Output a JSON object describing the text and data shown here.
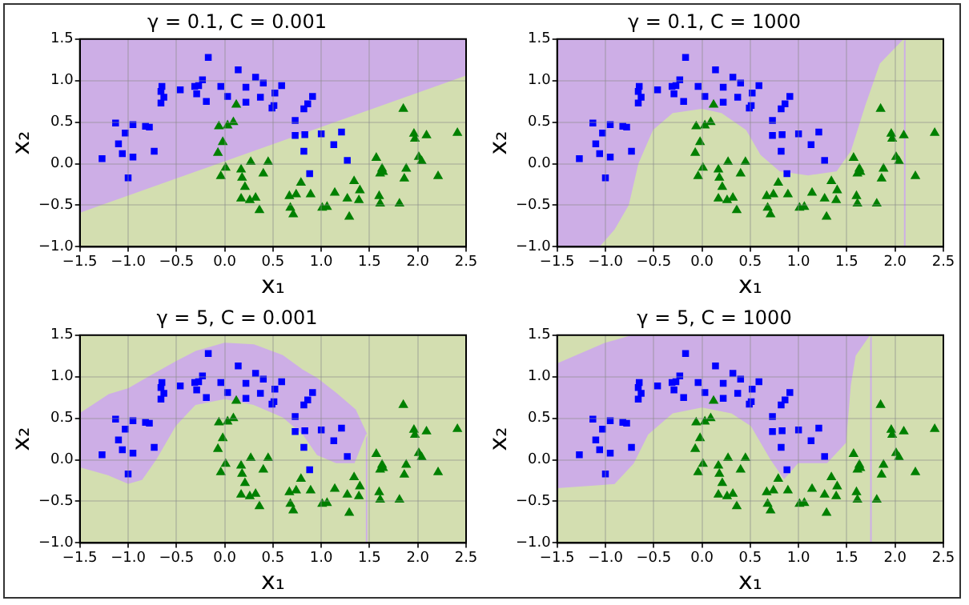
{
  "chart_data": [
    {
      "type": "scatter",
      "title": "γ = 0.1, C = 0.001",
      "xlabel": "x₁",
      "ylabel": "x₂",
      "xlim": [
        -1.5,
        2.5
      ],
      "ylim": [
        -1.0,
        1.5
      ],
      "xticks": [
        {
          "value": -1.5,
          "label": "−1.5"
        },
        {
          "value": -1.0,
          "label": "−1.0"
        },
        {
          "value": -0.5,
          "label": "−0.5"
        },
        {
          "value": 0,
          "label": "0.0"
        },
        {
          "value": 0.5,
          "label": "0.5"
        },
        {
          "value": 1.0,
          "label": "1.0"
        },
        {
          "value": 1.5,
          "label": "1.5"
        },
        {
          "value": 2.0,
          "label": "2.0"
        },
        {
          "value": 2.5,
          "label": "2.5"
        }
      ],
      "yticks": [
        {
          "value": -1.0,
          "label": "−1.0"
        },
        {
          "value": -0.5,
          "label": "−0.5"
        },
        {
          "value": 0,
          "label": "0.0"
        },
        {
          "value": 0.5,
          "label": "0.5"
        },
        {
          "value": 1.0,
          "label": "1.0"
        },
        {
          "value": 1.5,
          "label": "1.5"
        }
      ],
      "grid": true,
      "legend": false,
      "series": [
        {
          "type": "area",
          "color": "#d3deb0",
          "x": [
            -1.5,
            -1.5,
            2.5,
            2.5
          ],
          "values": [
            -1.0,
            -0.6,
            1.05,
            -1.0
          ]
        },
        {
          "color": "#0000ff",
          "marker": "square",
          "x": [
            -1.27,
            -1.13,
            -1.03,
            -1.1,
            -1.06,
            -0.95,
            -0.95,
            -1.0,
            -0.82,
            -0.78,
            -0.73,
            -0.65,
            -0.66,
            -0.63,
            -0.66,
            -0.46,
            -0.31,
            -0.27,
            -0.29,
            -0.23,
            -0.19,
            -0.17,
            -0.04,
            0.03,
            0.14,
            0.22,
            0.22,
            0.32,
            0.37,
            0.4,
            0.49,
            0.51,
            0.52,
            0.59,
            0.73,
            0.73,
            0.82,
            0.86,
            0.91,
            0.83,
            0.82,
            0.88,
            1.0,
            1.13,
            1.21,
            1.27
          ],
          "values": [
            0.06,
            0.49,
            0.37,
            0.24,
            0.12,
            0.47,
            0.08,
            -0.17,
            0.45,
            0.44,
            0.15,
            0.93,
            0.87,
            0.8,
            0.73,
            0.89,
            0.93,
            0.94,
            0.84,
            1.01,
            0.75,
            1.28,
            0.93,
            0.81,
            1.13,
            0.92,
            0.74,
            1.04,
            0.8,
            0.97,
            0.67,
            0.7,
            0.85,
            0.94,
            0.52,
            0.34,
            0.66,
            0.72,
            0.81,
            0.35,
            0.15,
            -0.12,
            0.36,
            0.23,
            0.38,
            0.04
          ]
        },
        {
          "color": "#008000",
          "marker": "triangle",
          "x": [
            0.12,
            -0.06,
            0.03,
            0.09,
            -0.02,
            -0.07,
            0.01,
            -0.04,
            0.17,
            0.18,
            0.21,
            0.27,
            0.26,
            0.32,
            0.17,
            0.36,
            0.4,
            0.45,
            0.67,
            0.68,
            0.71,
            0.74,
            0.79,
            0.89,
            1.01,
            1.06,
            1.14,
            1.27,
            1.29,
            1.34,
            1.39,
            1.4,
            1.57,
            1.61,
            1.63,
            1.64,
            1.6,
            1.61,
            1.81,
            1.86,
            1.88,
            1.85,
            1.96,
            1.97,
            2.09,
            2.01,
            2.04,
            2.21,
            2.41
          ],
          "values": [
            0.71,
            0.45,
            0.46,
            0.5,
            0.26,
            0.13,
            -0.05,
            -0.15,
            -0.07,
            -0.17,
            -0.28,
            0.02,
            -0.44,
            -0.41,
            -0.42,
            -0.56,
            -0.12,
            0.02,
            -0.39,
            -0.53,
            -0.61,
            -0.37,
            -0.23,
            -0.37,
            -0.53,
            -0.52,
            -0.35,
            -0.42,
            -0.64,
            -0.21,
            -0.44,
            -0.32,
            0.07,
            -0.12,
            -0.06,
            -0.1,
            -0.39,
            -0.48,
            -0.48,
            -0.18,
            -0.06,
            0.66,
            0.36,
            0.3,
            0.34,
            0.08,
            0.03,
            -0.15,
            0.37
          ]
        }
      ]
    },
    {
      "type": "scatter",
      "title": "γ = 0.1, C = 1000",
      "xlabel": "x₁",
      "ylabel": "x₂",
      "xlim": [
        -1.5,
        2.5
      ],
      "ylim": [
        -1.0,
        1.5
      ],
      "xticks": [
        {
          "value": -1.5,
          "label": "−1.5"
        },
        {
          "value": -1.0,
          "label": "−1.0"
        },
        {
          "value": -0.5,
          "label": "−0.5"
        },
        {
          "value": 0,
          "label": "0.0"
        },
        {
          "value": 0.5,
          "label": "0.5"
        },
        {
          "value": 1.0,
          "label": "1.0"
        },
        {
          "value": 1.5,
          "label": "1.5"
        },
        {
          "value": 2.0,
          "label": "2.0"
        },
        {
          "value": 2.5,
          "label": "2.5"
        }
      ],
      "yticks": [
        {
          "value": -1.0,
          "label": "−1.0"
        },
        {
          "value": -0.5,
          "label": "−0.5"
        },
        {
          "value": 0,
          "label": "0.0"
        },
        {
          "value": 0.5,
          "label": "0.5"
        },
        {
          "value": 1.0,
          "label": "1.0"
        },
        {
          "value": 1.5,
          "label": "1.5"
        }
      ],
      "grid": true,
      "legend": false,
      "series": [
        {
          "type": "area",
          "color": "#cdaee6",
          "x": [
            -1.5,
            -1.5,
            2.1,
            2.1
          ],
          "values": [
            -1.0,
            1.5,
            1.5,
            -1.0
          ]
        },
        {
          "type": "area",
          "color": "#d3deb0",
          "x": [
            -1.05,
            -0.9,
            -0.75,
            -0.65,
            -0.5,
            -0.3,
            0,
            0.2,
            0.45,
            0.6,
            0.8,
            1.1,
            1.4,
            1.55,
            1.7,
            1.85,
            2.1,
            2.5,
            2.5
          ],
          "values": [
            -1.0,
            -0.8,
            -0.5,
            0,
            0.4,
            0.6,
            0.65,
            0.6,
            0.4,
            0.1,
            -0.1,
            -0.15,
            -0.1,
            0.15,
            0.7,
            1.2,
            1.5,
            1.5,
            -1.0
          ]
        },
        {
          "color": "#0000ff",
          "marker": "square",
          "x": [
            -1.27,
            -1.13,
            -1.03,
            -1.1,
            -1.06,
            -0.95,
            -0.95,
            -1.0,
            -0.82,
            -0.78,
            -0.73,
            -0.65,
            -0.66,
            -0.63,
            -0.66,
            -0.46,
            -0.31,
            -0.27,
            -0.29,
            -0.23,
            -0.19,
            -0.17,
            -0.04,
            0.03,
            0.14,
            0.22,
            0.22,
            0.32,
            0.37,
            0.4,
            0.49,
            0.51,
            0.52,
            0.59,
            0.73,
            0.73,
            0.82,
            0.86,
            0.91,
            0.83,
            0.82,
            0.88,
            1.0,
            1.13,
            1.21,
            1.27
          ],
          "values": [
            0.06,
            0.49,
            0.37,
            0.24,
            0.12,
            0.47,
            0.08,
            -0.17,
            0.45,
            0.44,
            0.15,
            0.93,
            0.87,
            0.8,
            0.73,
            0.89,
            0.93,
            0.94,
            0.84,
            1.01,
            0.75,
            1.28,
            0.93,
            0.81,
            1.13,
            0.92,
            0.74,
            1.04,
            0.8,
            0.97,
            0.67,
            0.7,
            0.85,
            0.94,
            0.52,
            0.34,
            0.66,
            0.72,
            0.81,
            0.35,
            0.15,
            -0.12,
            0.36,
            0.23,
            0.38,
            0.04
          ]
        },
        {
          "color": "#008000",
          "marker": "triangle",
          "x": [
            0.12,
            -0.06,
            0.03,
            0.09,
            -0.02,
            -0.07,
            0.01,
            -0.04,
            0.17,
            0.18,
            0.21,
            0.27,
            0.26,
            0.32,
            0.17,
            0.36,
            0.4,
            0.45,
            0.67,
            0.68,
            0.71,
            0.74,
            0.79,
            0.89,
            1.01,
            1.06,
            1.14,
            1.27,
            1.29,
            1.34,
            1.39,
            1.4,
            1.57,
            1.61,
            1.63,
            1.64,
            1.6,
            1.61,
            1.81,
            1.86,
            1.88,
            1.85,
            1.96,
            1.97,
            2.09,
            2.01,
            2.04,
            2.21,
            2.41
          ],
          "values": [
            0.71,
            0.45,
            0.46,
            0.5,
            0.26,
            0.13,
            -0.05,
            -0.15,
            -0.07,
            -0.17,
            -0.28,
            0.02,
            -0.44,
            -0.41,
            -0.42,
            -0.56,
            -0.12,
            0.02,
            -0.39,
            -0.53,
            -0.61,
            -0.37,
            -0.23,
            -0.37,
            -0.53,
            -0.52,
            -0.35,
            -0.42,
            -0.64,
            -0.21,
            -0.44,
            -0.32,
            0.07,
            -0.12,
            -0.06,
            -0.1,
            -0.39,
            -0.48,
            -0.48,
            -0.18,
            -0.06,
            0.66,
            0.36,
            0.3,
            0.34,
            0.08,
            0.03,
            -0.15,
            0.37
          ]
        }
      ]
    },
    {
      "type": "scatter",
      "title": "γ = 5, C = 0.001",
      "xlabel": "x₁",
      "ylabel": "x₂",
      "xlim": [
        -1.5,
        2.5
      ],
      "ylim": [
        -1.0,
        1.5
      ],
      "xticks": [
        {
          "value": -1.5,
          "label": "−1.5"
        },
        {
          "value": -1.0,
          "label": "−1.0"
        },
        {
          "value": -0.5,
          "label": "−0.5"
        },
        {
          "value": 0,
          "label": "0.0"
        },
        {
          "value": 0.5,
          "label": "0.5"
        },
        {
          "value": 1.0,
          "label": "1.0"
        },
        {
          "value": 1.5,
          "label": "1.5"
        },
        {
          "value": 2.0,
          "label": "2.0"
        },
        {
          "value": 2.5,
          "label": "2.5"
        }
      ],
      "yticks": [
        {
          "value": -1.0,
          "label": "−1.0"
        },
        {
          "value": -0.5,
          "label": "−0.5"
        },
        {
          "value": 0,
          "label": "0.0"
        },
        {
          "value": 0.5,
          "label": "0.5"
        },
        {
          "value": 1.0,
          "label": "1.0"
        },
        {
          "value": 1.5,
          "label": "1.5"
        }
      ],
      "grid": true,
      "legend": false,
      "series": [
        {
          "type": "area",
          "color": "#cdaee6",
          "x": [
            -1.5,
            -1.5,
            -1.2,
            -1.0,
            -0.85,
            -0.7,
            -0.5,
            -0.3,
            0,
            0.3,
            0.6,
            0.8,
            0.95,
            1.15,
            1.35,
            1.47,
            1.47
          ],
          "values": [
            -1.0,
            0.55,
            0.78,
            0.85,
            0.95,
            1.05,
            1.18,
            1.3,
            1.4,
            1.38,
            1.25,
            1.08,
            0.98,
            0.8,
            0.6,
            0.3,
            -1.0
          ]
        },
        {
          "type": "area",
          "color": "#d3deb0",
          "x": [
            -1.5,
            -1.5,
            -1.2,
            -1.0,
            -0.85,
            -0.7,
            -0.5,
            -0.3,
            0,
            0.3,
            0.6,
            0.8,
            0.95,
            1.15,
            1.35,
            1.47,
            2.5,
            2.5
          ],
          "values": [
            -1.0,
            -0.1,
            -0.2,
            -0.3,
            -0.25,
            0.0,
            0.4,
            0.65,
            0.72,
            0.65,
            0.5,
            0.3,
            0.05,
            -0.05,
            -0.05,
            0.3,
            0.3,
            -1.0
          ]
        },
        {
          "color": "#0000ff",
          "marker": "square",
          "x": [
            -1.27,
            -1.13,
            -1.03,
            -1.1,
            -1.06,
            -0.95,
            -0.95,
            -1.0,
            -0.82,
            -0.78,
            -0.73,
            -0.65,
            -0.66,
            -0.63,
            -0.66,
            -0.46,
            -0.31,
            -0.27,
            -0.29,
            -0.23,
            -0.19,
            -0.17,
            -0.04,
            0.03,
            0.14,
            0.22,
            0.22,
            0.32,
            0.37,
            0.4,
            0.49,
            0.51,
            0.52,
            0.59,
            0.73,
            0.73,
            0.82,
            0.86,
            0.91,
            0.83,
            0.82,
            0.88,
            1.0,
            1.13,
            1.21,
            1.27
          ],
          "values": [
            0.06,
            0.49,
            0.37,
            0.24,
            0.12,
            0.47,
            0.08,
            -0.17,
            0.45,
            0.44,
            0.15,
            0.93,
            0.87,
            0.8,
            0.73,
            0.89,
            0.93,
            0.94,
            0.84,
            1.01,
            0.75,
            1.28,
            0.93,
            0.81,
            1.13,
            0.92,
            0.74,
            1.04,
            0.8,
            0.97,
            0.67,
            0.7,
            0.85,
            0.94,
            0.52,
            0.34,
            0.66,
            0.72,
            0.81,
            0.35,
            0.15,
            -0.12,
            0.36,
            0.23,
            0.38,
            0.04
          ]
        },
        {
          "color": "#008000",
          "marker": "triangle",
          "x": [
            0.12,
            -0.06,
            0.03,
            0.09,
            -0.02,
            -0.07,
            0.01,
            -0.04,
            0.17,
            0.18,
            0.21,
            0.27,
            0.26,
            0.32,
            0.17,
            0.36,
            0.4,
            0.45,
            0.67,
            0.68,
            0.71,
            0.74,
            0.79,
            0.89,
            1.01,
            1.06,
            1.14,
            1.27,
            1.29,
            1.34,
            1.39,
            1.4,
            1.57,
            1.61,
            1.63,
            1.64,
            1.6,
            1.61,
            1.81,
            1.86,
            1.88,
            1.85,
            1.96,
            1.97,
            2.09,
            2.01,
            2.04,
            2.21,
            2.41
          ],
          "values": [
            0.71,
            0.45,
            0.46,
            0.5,
            0.26,
            0.13,
            -0.05,
            -0.15,
            -0.07,
            -0.17,
            -0.28,
            0.02,
            -0.44,
            -0.41,
            -0.42,
            -0.56,
            -0.12,
            0.02,
            -0.39,
            -0.53,
            -0.61,
            -0.37,
            -0.23,
            -0.37,
            -0.53,
            -0.52,
            -0.35,
            -0.42,
            -0.64,
            -0.21,
            -0.44,
            -0.32,
            0.07,
            -0.12,
            -0.06,
            -0.1,
            -0.39,
            -0.48,
            -0.48,
            -0.18,
            -0.06,
            0.66,
            0.36,
            0.3,
            0.34,
            0.08,
            0.03,
            -0.15,
            0.37
          ]
        }
      ]
    },
    {
      "type": "scatter",
      "title": "γ = 5, C = 1000",
      "xlabel": "x₁",
      "ylabel": "x₂",
      "xlim": [
        -1.5,
        2.5
      ],
      "ylim": [
        -1.0,
        1.5
      ],
      "xticks": [
        {
          "value": -1.5,
          "label": "−1.5"
        },
        {
          "value": -1.0,
          "label": "−1.0"
        },
        {
          "value": -0.5,
          "label": "−0.5"
        },
        {
          "value": 0,
          "label": "0.0"
        },
        {
          "value": 0.5,
          "label": "0.5"
        },
        {
          "value": 1.0,
          "label": "1.0"
        },
        {
          "value": 1.5,
          "label": "1.5"
        },
        {
          "value": 2.0,
          "label": "2.0"
        },
        {
          "value": 2.5,
          "label": "2.5"
        }
      ],
      "yticks": [
        {
          "value": -1.0,
          "label": "−1.0"
        },
        {
          "value": -0.5,
          "label": "−0.5"
        },
        {
          "value": 0,
          "label": "0.0"
        },
        {
          "value": 0.5,
          "label": "0.5"
        },
        {
          "value": 1.0,
          "label": "1.0"
        },
        {
          "value": 1.5,
          "label": "1.5"
        }
      ],
      "grid": true,
      "legend": false,
      "series": [
        {
          "type": "area",
          "color": "#cdaee6",
          "x": [
            -1.5,
            -1.5,
            -1.0,
            -0.9,
            -0.7,
            1.75,
            1.75
          ],
          "values": [
            -1.0,
            1.15,
            1.4,
            1.43,
            1.5,
            1.5,
            -1.0
          ]
        },
        {
          "type": "area",
          "color": "#d3deb0",
          "x": [
            -1.5,
            -1.5,
            -1.0,
            -0.9,
            -0.7,
            -0.55,
            -0.3,
            0,
            0.3,
            0.5,
            0.7,
            0.85,
            1.0,
            1.3,
            1.5,
            1.55,
            1.6,
            1.75,
            2.5,
            2.5
          ],
          "values": [
            -1.0,
            -0.35,
            -0.31,
            -0.3,
            -0.05,
            0.3,
            0.55,
            0.62,
            0.55,
            0.4,
            0.0,
            -0.25,
            -0.05,
            -0.05,
            0.2,
            0.9,
            1.25,
            1.5,
            1.5,
            -1.0
          ]
        },
        {
          "color": "#0000ff",
          "marker": "square",
          "x": [
            -1.27,
            -1.13,
            -1.03,
            -1.1,
            -1.06,
            -0.95,
            -0.95,
            -1.0,
            -0.82,
            -0.78,
            -0.73,
            -0.65,
            -0.66,
            -0.63,
            -0.66,
            -0.46,
            -0.31,
            -0.27,
            -0.29,
            -0.23,
            -0.19,
            -0.17,
            -0.04,
            0.03,
            0.14,
            0.22,
            0.22,
            0.32,
            0.37,
            0.4,
            0.49,
            0.51,
            0.52,
            0.59,
            0.73,
            0.73,
            0.82,
            0.86,
            0.91,
            0.83,
            0.82,
            0.88,
            1.0,
            1.13,
            1.21,
            1.27
          ],
          "values": [
            0.06,
            0.49,
            0.37,
            0.24,
            0.12,
            0.47,
            0.08,
            -0.17,
            0.45,
            0.44,
            0.15,
            0.93,
            0.87,
            0.8,
            0.73,
            0.89,
            0.93,
            0.94,
            0.84,
            1.01,
            0.75,
            1.28,
            0.93,
            0.81,
            1.13,
            0.92,
            0.74,
            1.04,
            0.8,
            0.97,
            0.67,
            0.7,
            0.85,
            0.94,
            0.52,
            0.34,
            0.66,
            0.72,
            0.81,
            0.35,
            0.15,
            -0.12,
            0.36,
            0.23,
            0.38,
            0.04
          ]
        },
        {
          "color": "#008000",
          "marker": "triangle",
          "x": [
            0.12,
            -0.06,
            0.03,
            0.09,
            -0.02,
            -0.07,
            0.01,
            -0.04,
            0.17,
            0.18,
            0.21,
            0.27,
            0.26,
            0.32,
            0.17,
            0.36,
            0.4,
            0.45,
            0.67,
            0.68,
            0.71,
            0.74,
            0.79,
            0.89,
            1.01,
            1.06,
            1.14,
            1.27,
            1.29,
            1.34,
            1.39,
            1.4,
            1.57,
            1.61,
            1.63,
            1.64,
            1.6,
            1.61,
            1.81,
            1.86,
            1.88,
            1.85,
            1.96,
            1.97,
            2.09,
            2.01,
            2.04,
            2.21,
            2.41
          ],
          "values": [
            0.71,
            0.45,
            0.46,
            0.5,
            0.26,
            0.13,
            -0.05,
            -0.15,
            -0.07,
            -0.17,
            -0.28,
            0.02,
            -0.44,
            -0.41,
            -0.42,
            -0.56,
            -0.12,
            0.02,
            -0.39,
            -0.53,
            -0.61,
            -0.37,
            -0.23,
            -0.37,
            -0.53,
            -0.52,
            -0.35,
            -0.42,
            -0.64,
            -0.21,
            -0.44,
            -0.32,
            0.07,
            -0.12,
            -0.06,
            -0.1,
            -0.39,
            -0.48,
            -0.48,
            -0.18,
            -0.06,
            0.66,
            0.36,
            0.3,
            0.34,
            0.08,
            0.03,
            -0.15,
            0.37
          ]
        }
      ]
    }
  ]
}
